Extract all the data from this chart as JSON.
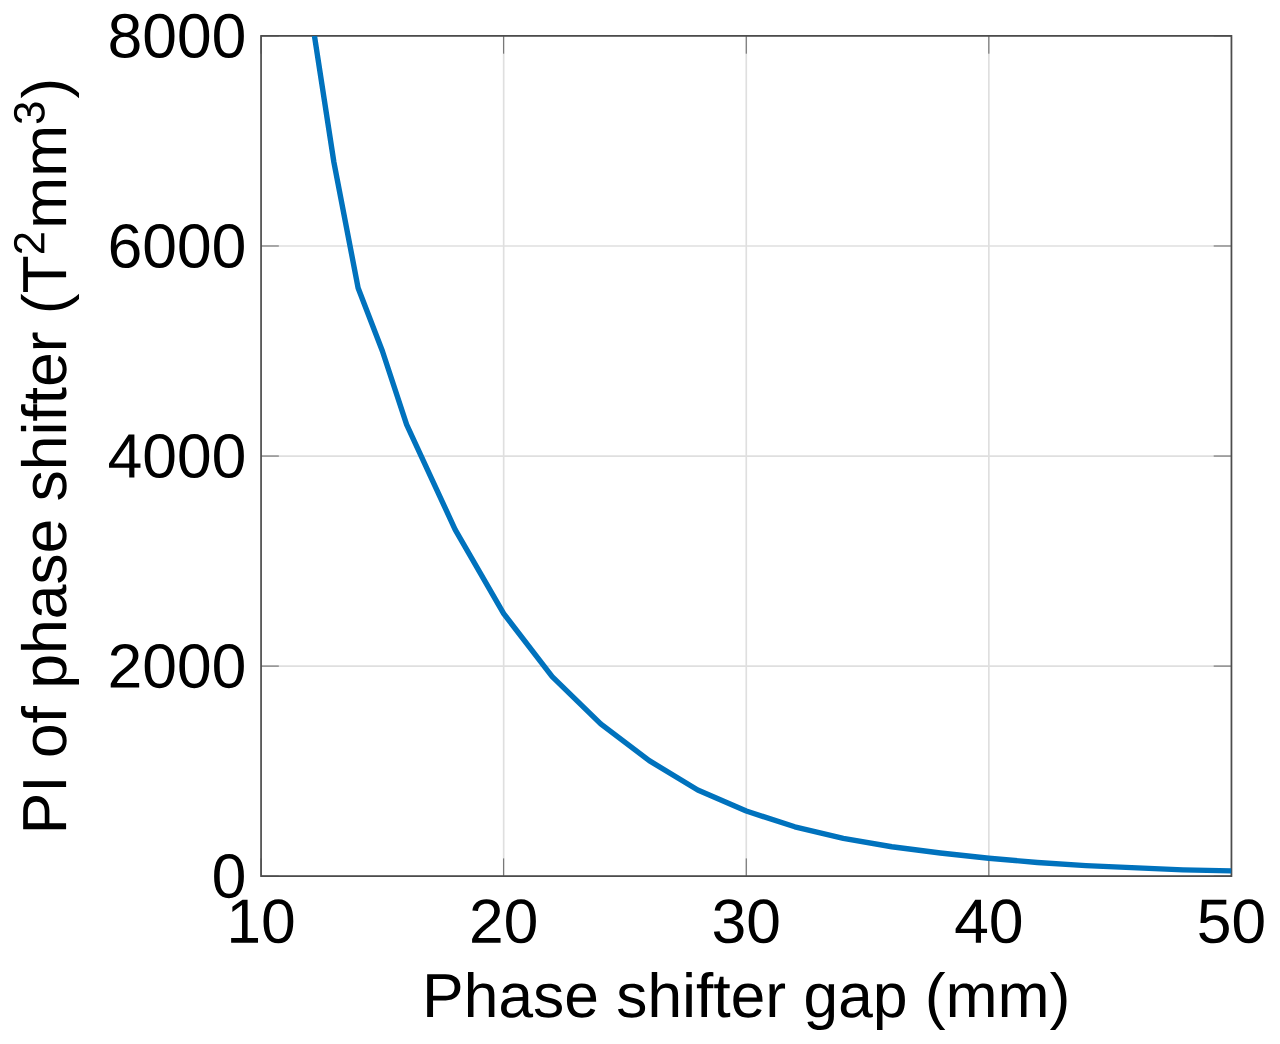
{
  "chart_data": {
    "type": "line",
    "xlabel": "Phase shifter gap (mm)",
    "ylabel": "PI of phase shifter (T$^{2}$mm$^{3}$)",
    "x": [
      12.2,
      13,
      14,
      15,
      16,
      17,
      18,
      19,
      20,
      22,
      24,
      26,
      28,
      30,
      32,
      34,
      36,
      38,
      40,
      42,
      44,
      46,
      48,
      50
    ],
    "series": [
      {
        "color": "#0072bd",
        "values": [
          8000,
          6800,
          5600,
          5000,
          4300,
          3800,
          3300,
          2900,
          2500,
          1900,
          1450,
          1100,
          820,
          620,
          470,
          360,
          280,
          220,
          170,
          130,
          100,
          80,
          60,
          50
        ]
      }
    ],
    "xlim": [
      10,
      50
    ],
    "ylim": [
      0,
      8000
    ],
    "xticks": [
      10,
      20,
      30,
      40,
      50
    ],
    "yticks": [
      0,
      2000,
      4000,
      6000,
      8000
    ],
    "grid": true,
    "marker": "none",
    "line_style": "solid"
  }
}
